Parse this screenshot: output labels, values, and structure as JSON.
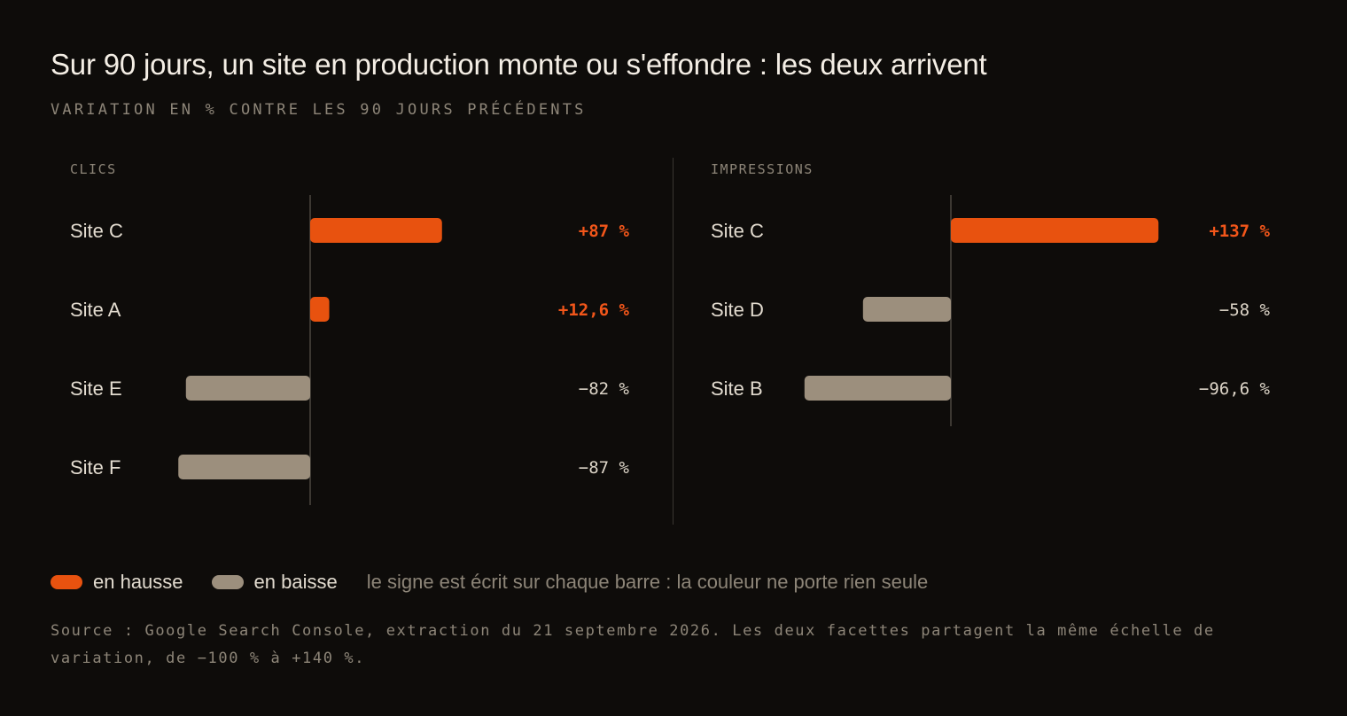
{
  "header": {
    "title": "Sur 90 jours, un site en production monte ou s'effondre : les deux arrivent",
    "subtitle": "VARIATION EN % CONTRE LES 90 JOURS PRÉCÉDENTS"
  },
  "colors": {
    "up": "#e8520f",
    "down": "#9c8f7d",
    "up_text": "#f2561a",
    "down_text": "#ddd5c8"
  },
  "chart_data": [
    {
      "type": "bar",
      "orientation": "horizontal",
      "facet": "CLICS",
      "categories": [
        "Site C",
        "Site A",
        "Site E",
        "Site F"
      ],
      "values": [
        87,
        12.6,
        -82,
        -87
      ],
      "value_labels": [
        "+87 %",
        "+12,6 %",
        "−82 %",
        "−87 %"
      ],
      "xlim": [
        -100,
        140
      ],
      "grid": false
    },
    {
      "type": "bar",
      "orientation": "horizontal",
      "facet": "IMPRESSIONS",
      "categories": [
        "Site C",
        "Site D",
        "Site B"
      ],
      "values": [
        137,
        -58,
        -96.6
      ],
      "value_labels": [
        "+137 %",
        "−58 %",
        "−96,6 %"
      ],
      "xlim": [
        -100,
        140
      ],
      "grid": false
    }
  ],
  "legend": {
    "up_label": "en hausse",
    "down_label": "en baisse",
    "note": "le signe est écrit sur chaque barre : la couleur ne porte rien seule"
  },
  "footer": {
    "source": "Source : Google Search Console, extraction du 21 septembre 2026. Les deux facettes partagent la même échelle de variation, de −100 % à +140 %."
  }
}
